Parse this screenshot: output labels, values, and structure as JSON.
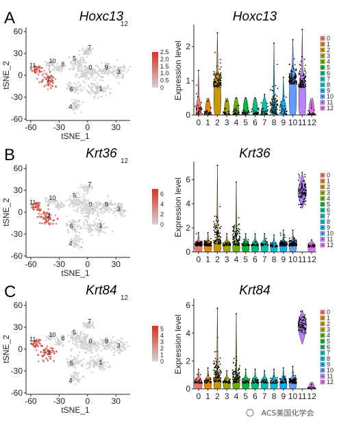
{
  "watermark": "ACS美国化学会",
  "chart_data": [
    {
      "type": "scatter",
      "panel": "A",
      "title": "Hoxc13",
      "subscript": "12",
      "xlabel": "tSNE_1",
      "ylabel": "tSNE_2",
      "xticks": [
        "-60",
        "-30",
        "0",
        "30"
      ],
      "yticks": [
        "60",
        "30",
        "0",
        "-30",
        "-60"
      ],
      "xlim": [
        -65,
        45
      ],
      "ylim": [
        -62,
        62
      ],
      "cluster_labels": [
        "0",
        "1",
        "2",
        "3",
        "4",
        "5",
        "6",
        "7",
        "8",
        "9",
        "10",
        "11"
      ],
      "colorbar": {
        "ticks": [
          "2.5",
          "2.0",
          "1.5",
          "1.0",
          "0.5",
          "0"
        ],
        "max": 2.5,
        "low_color": "#d4d4d4",
        "high_color": "#d7301f"
      },
      "high_expression_clusters": [
        "2",
        "11"
      ]
    },
    {
      "type": "violin",
      "panel": "A",
      "title": "Hoxc13",
      "ylabel": "Expression level",
      "categories": [
        "0",
        "1",
        "2",
        "3",
        "4",
        "5",
        "6",
        "7",
        "8",
        "9",
        "10",
        "11",
        "12"
      ],
      "yticks": [
        "0",
        "1",
        "2"
      ],
      "ylim": [
        0,
        2.6
      ],
      "series": [
        {
          "values_max": [
            1.3,
            0.4,
            2.4,
            0.4,
            0.5,
            0.5,
            0.5,
            0.6,
            2.1,
            1.1,
            2.2,
            2.5,
            0.2
          ]
        },
        {
          "values_median": [
            0,
            0,
            0.8,
            0,
            0,
            0,
            0,
            0,
            0,
            0,
            0.9,
            0.8,
            0
          ]
        }
      ],
      "legend": [
        "0",
        "1",
        "2",
        "3",
        "4",
        "5",
        "6",
        "7",
        "8",
        "9",
        "10",
        "11",
        "12"
      ],
      "legend_position": "right"
    },
    {
      "type": "scatter",
      "panel": "B",
      "title": "Krt36",
      "subscript": "12",
      "xlabel": "tSNE_1",
      "ylabel": "tSNE_2",
      "xticks": [
        "-60",
        "-30",
        "0",
        "30"
      ],
      "yticks": [
        "60",
        "30",
        "0",
        "-30",
        "-60"
      ],
      "xlim": [
        -65,
        45
      ],
      "ylim": [
        -62,
        62
      ],
      "cluster_labels": [
        "0",
        "1",
        "2",
        "4",
        "5",
        "6",
        "7",
        "9",
        "10",
        "11",
        "3"
      ],
      "colorbar": {
        "ticks": [
          "6",
          "4",
          "2",
          "0"
        ],
        "max": 7,
        "low_color": "#d4d4d4",
        "high_color": "#d7301f"
      },
      "high_expression_clusters": [
        "2",
        "11"
      ]
    },
    {
      "type": "violin",
      "panel": "B",
      "title": "Krt36",
      "ylabel": "Expression level",
      "categories": [
        "0",
        "1",
        "2",
        "3",
        "4",
        "5",
        "6",
        "7",
        "8",
        "9",
        "10",
        "11",
        "12"
      ],
      "yticks": [
        "0",
        "2",
        "4",
        "6"
      ],
      "ylim": [
        0,
        7.4
      ],
      "series": [
        {
          "values_max": [
            1.6,
            1.6,
            7.2,
            1.5,
            5.8,
            1.5,
            1.5,
            1.5,
            1.4,
            1.8,
            1.8,
            6.6,
            1.0
          ]
        },
        {
          "values_median": [
            0.5,
            0.5,
            0.6,
            0.5,
            0.5,
            0.5,
            0.5,
            0.5,
            0.4,
            0.5,
            0.5,
            5.0,
            0.4
          ]
        }
      ],
      "legend": [
        "0",
        "1",
        "2",
        "3",
        "4",
        "5",
        "6",
        "7",
        "8",
        "9",
        "10",
        "11",
        "12"
      ],
      "legend_position": "right"
    },
    {
      "type": "scatter",
      "panel": "C",
      "title": "Krt84",
      "subscript": "12",
      "xlabel": "tSNE_1",
      "ylabel": "tSNE_2",
      "xticks": [
        "-60",
        "-30",
        "0",
        "30"
      ],
      "yticks": [
        "60",
        "30",
        "0",
        "-30",
        "-60"
      ],
      "xlim": [
        -65,
        45
      ],
      "ylim": [
        -62,
        62
      ],
      "cluster_labels": [
        "0",
        "1",
        "2",
        "3",
        "4",
        "5",
        "6",
        "7",
        "8",
        "9",
        "10",
        "11"
      ],
      "colorbar": {
        "ticks": [
          "5",
          "4",
          "3",
          "2",
          "1",
          "0"
        ],
        "max": 5.5,
        "low_color": "#d4d4d4",
        "high_color": "#d7301f"
      },
      "high_expression_clusters": [
        "2",
        "11"
      ]
    },
    {
      "type": "violin",
      "panel": "C",
      "title": "Krt84",
      "ylabel": "Expression level",
      "categories": [
        "0",
        "1",
        "2",
        "3",
        "4",
        "5",
        "6",
        "7",
        "8",
        "9",
        "10",
        "11",
        "12"
      ],
      "yticks": [
        "0",
        "2",
        "4",
        "6"
      ],
      "ylim": [
        0,
        6.4
      ],
      "series": [
        {
          "values_max": [
            1.4,
            1.5,
            5.8,
            1.3,
            5.4,
            1.4,
            1.4,
            1.3,
            1.4,
            1.5,
            1.6,
            5.6,
            0.3
          ]
        },
        {
          "values_median": [
            0.4,
            0.4,
            0.5,
            0.4,
            0.4,
            0.4,
            0.4,
            0.4,
            0.4,
            0.4,
            0.4,
            4.6,
            0
          ]
        }
      ],
      "legend": [
        "0",
        "1",
        "2",
        "3",
        "4",
        "5",
        "6",
        "7",
        "8",
        "9",
        "10",
        "11",
        "12"
      ],
      "legend_position": "right"
    }
  ],
  "cluster_colors": [
    "#f8766d",
    "#e58700",
    "#c99800",
    "#a3a500",
    "#6bb100",
    "#00ba38",
    "#00bf7d",
    "#00c0af",
    "#00bcd8",
    "#00b0f6",
    "#619cff",
    "#b983ff",
    "#e76bf3"
  ]
}
